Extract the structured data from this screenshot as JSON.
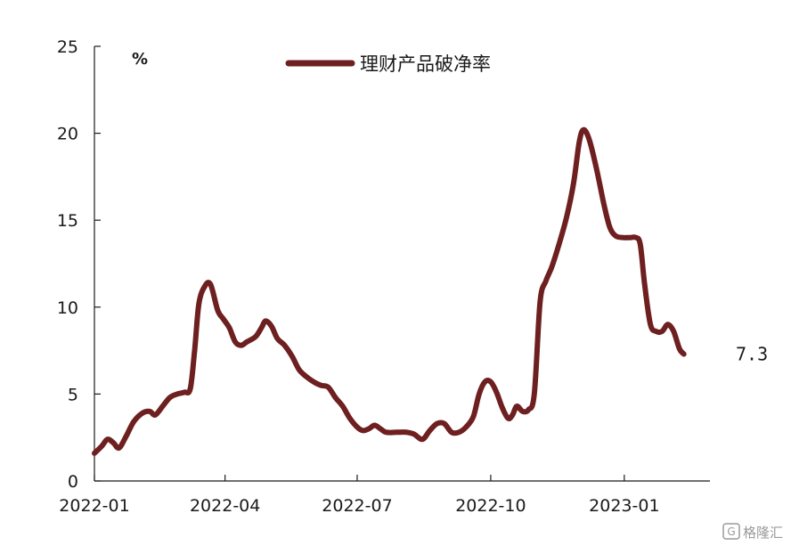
{
  "colors": {
    "series": "#6e1f1f",
    "axis": "#1a1a1a",
    "background": "#ffffff",
    "watermark": "#9a9a9a"
  },
  "watermark": {
    "icon": "watermark-logo-icon",
    "text": "格隆汇"
  },
  "chart_data": {
    "type": "line",
    "title": "",
    "xlabel": "",
    "ylabel": "",
    "y_unit": "%",
    "ylim": [
      0,
      25
    ],
    "yticks": [
      0,
      5,
      10,
      15,
      20,
      25
    ],
    "xlim": [
      "2022-01-01",
      "2023-03-01"
    ],
    "xticks": [
      "2022-01",
      "2022-04",
      "2022-07",
      "2022-10",
      "2023-01"
    ],
    "grid": false,
    "legend": {
      "position": "top-center"
    },
    "end_label": "7.3",
    "series": [
      {
        "name": "理财产品破净率",
        "color": "#6e1f1f",
        "points": [
          [
            "2022-01-01",
            1.6
          ],
          [
            "2022-01-06",
            2.0
          ],
          [
            "2022-01-10",
            2.4
          ],
          [
            "2022-01-14",
            2.2
          ],
          [
            "2022-01-18",
            1.9
          ],
          [
            "2022-01-23",
            2.6
          ],
          [
            "2022-01-28",
            3.4
          ],
          [
            "2022-02-03",
            3.9
          ],
          [
            "2022-02-08",
            4.0
          ],
          [
            "2022-02-12",
            3.8
          ],
          [
            "2022-02-17",
            4.3
          ],
          [
            "2022-02-22",
            4.8
          ],
          [
            "2022-02-27",
            5.0
          ],
          [
            "2022-03-04",
            5.1
          ],
          [
            "2022-03-08",
            5.3
          ],
          [
            "2022-03-11",
            7.5
          ],
          [
            "2022-03-14",
            10.2
          ],
          [
            "2022-03-18",
            11.2
          ],
          [
            "2022-03-22",
            11.3
          ],
          [
            "2022-03-27",
            9.8
          ],
          [
            "2022-03-31",
            9.3
          ],
          [
            "2022-04-04",
            8.8
          ],
          [
            "2022-04-08",
            8.0
          ],
          [
            "2022-04-12",
            7.8
          ],
          [
            "2022-04-16",
            8.0
          ],
          [
            "2022-04-22",
            8.3
          ],
          [
            "2022-04-26",
            8.8
          ],
          [
            "2022-04-29",
            9.2
          ],
          [
            "2022-05-03",
            8.9
          ],
          [
            "2022-05-07",
            8.2
          ],
          [
            "2022-05-12",
            7.8
          ],
          [
            "2022-05-17",
            7.2
          ],
          [
            "2022-05-22",
            6.4
          ],
          [
            "2022-05-27",
            6.0
          ],
          [
            "2022-06-01",
            5.7
          ],
          [
            "2022-06-06",
            5.5
          ],
          [
            "2022-06-11",
            5.4
          ],
          [
            "2022-06-16",
            4.8
          ],
          [
            "2022-06-21",
            4.3
          ],
          [
            "2022-06-26",
            3.6
          ],
          [
            "2022-07-01",
            3.1
          ],
          [
            "2022-07-05",
            2.9
          ],
          [
            "2022-07-09",
            3.0
          ],
          [
            "2022-07-13",
            3.2
          ],
          [
            "2022-07-17",
            3.0
          ],
          [
            "2022-07-21",
            2.8
          ],
          [
            "2022-07-28",
            2.8
          ],
          [
            "2022-08-04",
            2.8
          ],
          [
            "2022-08-09",
            2.7
          ],
          [
            "2022-08-15",
            2.4
          ],
          [
            "2022-08-20",
            2.9
          ],
          [
            "2022-08-25",
            3.3
          ],
          [
            "2022-08-30",
            3.3
          ],
          [
            "2022-09-04",
            2.8
          ],
          [
            "2022-09-09",
            2.8
          ],
          [
            "2022-09-14",
            3.1
          ],
          [
            "2022-09-19",
            3.7
          ],
          [
            "2022-09-23",
            5.0
          ],
          [
            "2022-09-27",
            5.7
          ],
          [
            "2022-10-01",
            5.7
          ],
          [
            "2022-10-05",
            5.1
          ],
          [
            "2022-10-09",
            4.2
          ],
          [
            "2022-10-13",
            3.6
          ],
          [
            "2022-10-16",
            3.8
          ],
          [
            "2022-10-19",
            4.3
          ],
          [
            "2022-10-23",
            4.0
          ],
          [
            "2022-10-27",
            4.1
          ],
          [
            "2022-10-31",
            5.0
          ],
          [
            "2022-11-04",
            10.3
          ],
          [
            "2022-11-08",
            11.5
          ],
          [
            "2022-11-12",
            12.3
          ],
          [
            "2022-11-17",
            13.6
          ],
          [
            "2022-11-22",
            15.1
          ],
          [
            "2022-11-27",
            17.1
          ],
          [
            "2022-12-01",
            19.5
          ],
          [
            "2022-12-04",
            20.2
          ],
          [
            "2022-12-08",
            19.6
          ],
          [
            "2022-12-13",
            17.9
          ],
          [
            "2022-12-18",
            15.9
          ],
          [
            "2022-12-22",
            14.6
          ],
          [
            "2022-12-26",
            14.1
          ],
          [
            "2022-12-31",
            14.0
          ],
          [
            "2023-01-05",
            14.0
          ],
          [
            "2023-01-09",
            14.0
          ],
          [
            "2023-01-12",
            13.6
          ],
          [
            "2023-01-15",
            11.3
          ],
          [
            "2023-01-19",
            9.0
          ],
          [
            "2023-01-23",
            8.6
          ],
          [
            "2023-01-27",
            8.6
          ],
          [
            "2023-01-31",
            9.0
          ],
          [
            "2023-02-04",
            8.6
          ],
          [
            "2023-02-08",
            7.6
          ],
          [
            "2023-02-11",
            7.3
          ]
        ]
      }
    ]
  }
}
